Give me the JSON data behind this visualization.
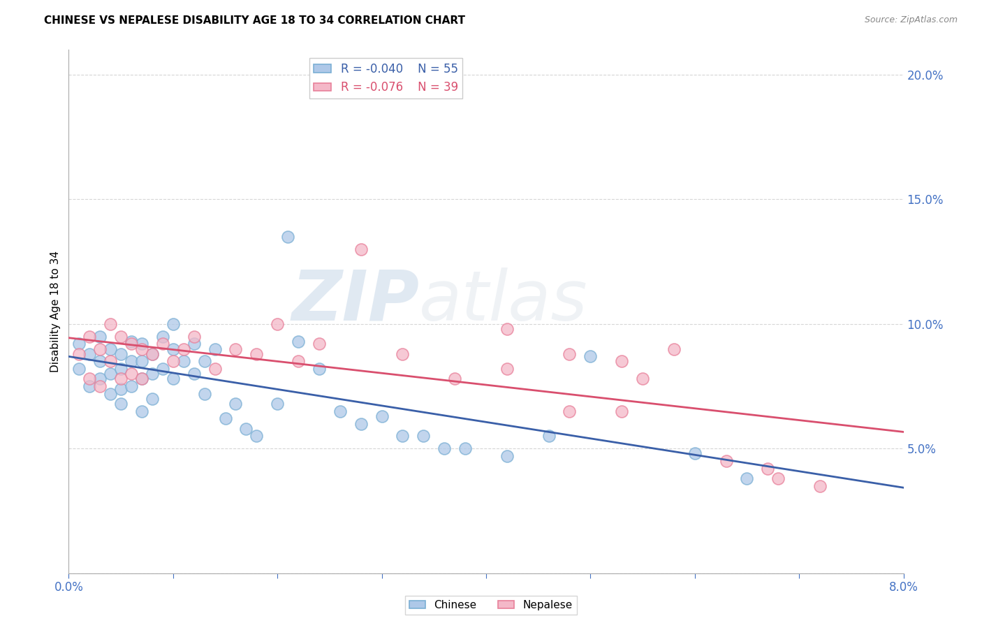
{
  "title": "CHINESE VS NEPALESE DISABILITY AGE 18 TO 34 CORRELATION CHART",
  "source": "Source: ZipAtlas.com",
  "ylabel": "Disability Age 18 to 34",
  "xlim": [
    0.0,
    0.08
  ],
  "ylim": [
    0.0,
    0.21
  ],
  "xticks": [
    0.0,
    0.01,
    0.02,
    0.03,
    0.04,
    0.05,
    0.06,
    0.07,
    0.08
  ],
  "yticks": [
    0.0,
    0.05,
    0.1,
    0.15,
    0.2
  ],
  "ytick_labels": [
    "",
    "5.0%",
    "10.0%",
    "15.0%",
    "20.0%"
  ],
  "legend_r_chinese": "-0.040",
  "legend_n_chinese": "55",
  "legend_r_nepalese": "-0.076",
  "legend_n_nepalese": "39",
  "chinese_color": "#aec8e8",
  "chinese_edge_color": "#7bafd4",
  "nepalese_color": "#f4b8c8",
  "nepalese_edge_color": "#e8809a",
  "trendline_chinese_color": "#3a5fa8",
  "trendline_nepalese_color": "#d94f6e",
  "axis_label_color": "#4472c4",
  "watermark_zip": "ZIP",
  "watermark_atlas": "atlas",
  "chinese_x": [
    0.001,
    0.001,
    0.002,
    0.002,
    0.003,
    0.003,
    0.003,
    0.004,
    0.004,
    0.004,
    0.005,
    0.005,
    0.005,
    0.005,
    0.006,
    0.006,
    0.006,
    0.007,
    0.007,
    0.007,
    0.007,
    0.008,
    0.008,
    0.008,
    0.009,
    0.009,
    0.01,
    0.01,
    0.01,
    0.011,
    0.012,
    0.012,
    0.013,
    0.013,
    0.014,
    0.015,
    0.016,
    0.017,
    0.018,
    0.02,
    0.021,
    0.022,
    0.024,
    0.026,
    0.028,
    0.03,
    0.032,
    0.034,
    0.036,
    0.038,
    0.042,
    0.046,
    0.05,
    0.06,
    0.065
  ],
  "chinese_y": [
    0.092,
    0.082,
    0.088,
    0.075,
    0.095,
    0.085,
    0.078,
    0.09,
    0.08,
    0.072,
    0.088,
    0.082,
    0.074,
    0.068,
    0.093,
    0.085,
    0.075,
    0.092,
    0.085,
    0.078,
    0.065,
    0.088,
    0.08,
    0.07,
    0.095,
    0.082,
    0.1,
    0.09,
    0.078,
    0.085,
    0.092,
    0.08,
    0.085,
    0.072,
    0.09,
    0.062,
    0.068,
    0.058,
    0.055,
    0.068,
    0.135,
    0.093,
    0.082,
    0.065,
    0.06,
    0.063,
    0.055,
    0.055,
    0.05,
    0.05,
    0.047,
    0.055,
    0.087,
    0.048,
    0.038
  ],
  "nepalese_x": [
    0.001,
    0.002,
    0.002,
    0.003,
    0.003,
    0.004,
    0.004,
    0.005,
    0.005,
    0.006,
    0.006,
    0.007,
    0.007,
    0.008,
    0.009,
    0.01,
    0.011,
    0.012,
    0.014,
    0.016,
    0.018,
    0.02,
    0.022,
    0.024,
    0.028,
    0.032,
    0.037,
    0.042,
    0.048,
    0.053,
    0.058,
    0.063,
    0.068,
    0.042,
    0.048,
    0.053,
    0.055,
    0.067,
    0.072
  ],
  "nepalese_y": [
    0.088,
    0.095,
    0.078,
    0.09,
    0.075,
    0.1,
    0.085,
    0.095,
    0.078,
    0.092,
    0.08,
    0.09,
    0.078,
    0.088,
    0.092,
    0.085,
    0.09,
    0.095,
    0.082,
    0.09,
    0.088,
    0.1,
    0.085,
    0.092,
    0.13,
    0.088,
    0.078,
    0.082,
    0.065,
    0.085,
    0.09,
    0.045,
    0.038,
    0.098,
    0.088,
    0.065,
    0.078,
    0.042,
    0.035
  ]
}
